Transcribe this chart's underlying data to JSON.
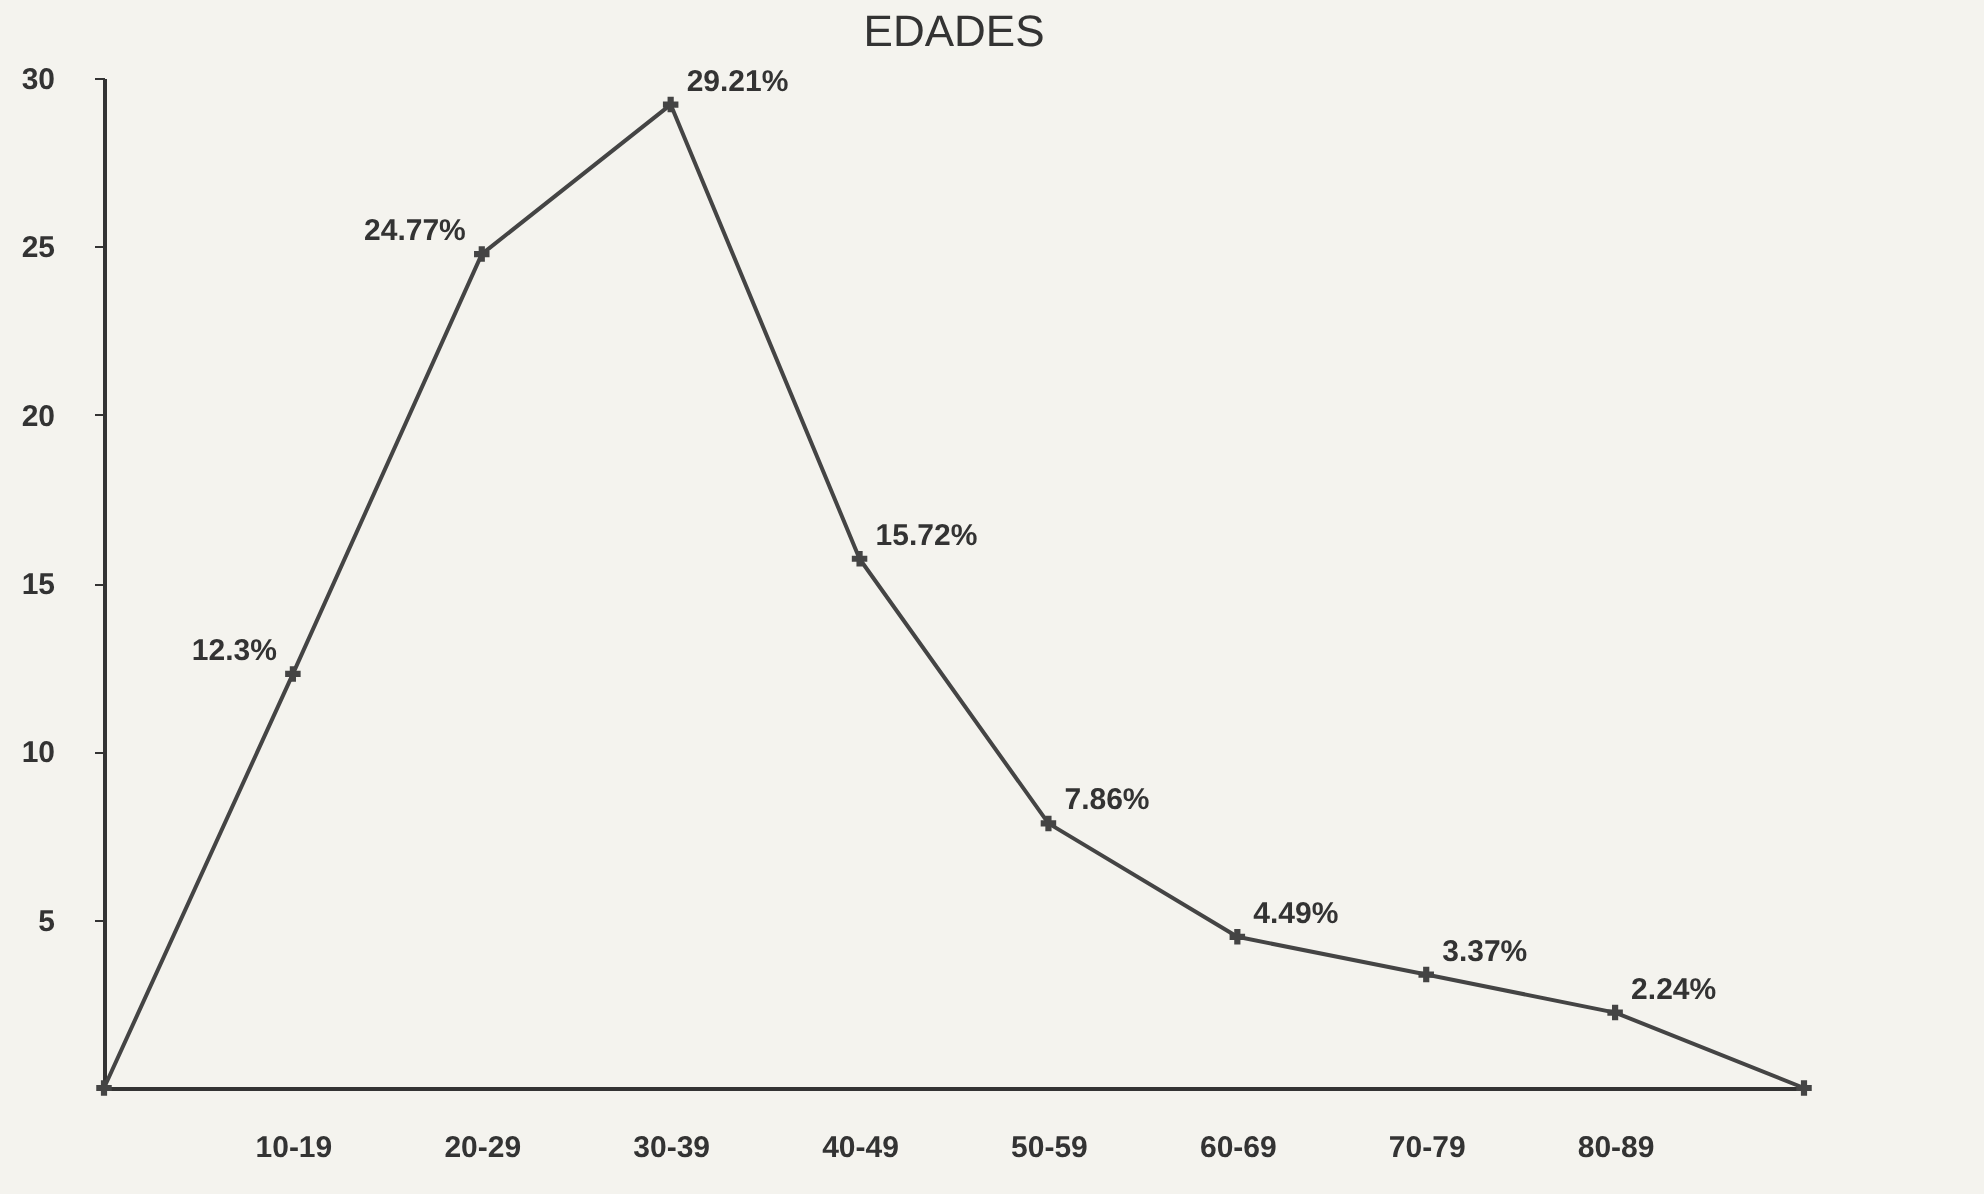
{
  "chart_data": {
    "type": "line",
    "title": "EDADES",
    "categories": [
      null,
      "10-19",
      "20-29",
      "30-39",
      "40-49",
      "50-59",
      "60-69",
      "70-79",
      "80-89",
      null
    ],
    "values": [
      0,
      12.3,
      24.77,
      29.21,
      15.72,
      7.86,
      4.49,
      3.37,
      2.24,
      0
    ],
    "value_labels": [
      null,
      "12.3%",
      "24.77%",
      "29.21%",
      "15.72%",
      "7.86%",
      "4.49%",
      "3.37%",
      "2.24%",
      null
    ],
    "color": "#444444",
    "ylim": [
      0,
      30
    ],
    "yticks": [
      5,
      10,
      15,
      20,
      25,
      30
    ],
    "grid": false,
    "marker": "cross",
    "line_style": "solid"
  }
}
